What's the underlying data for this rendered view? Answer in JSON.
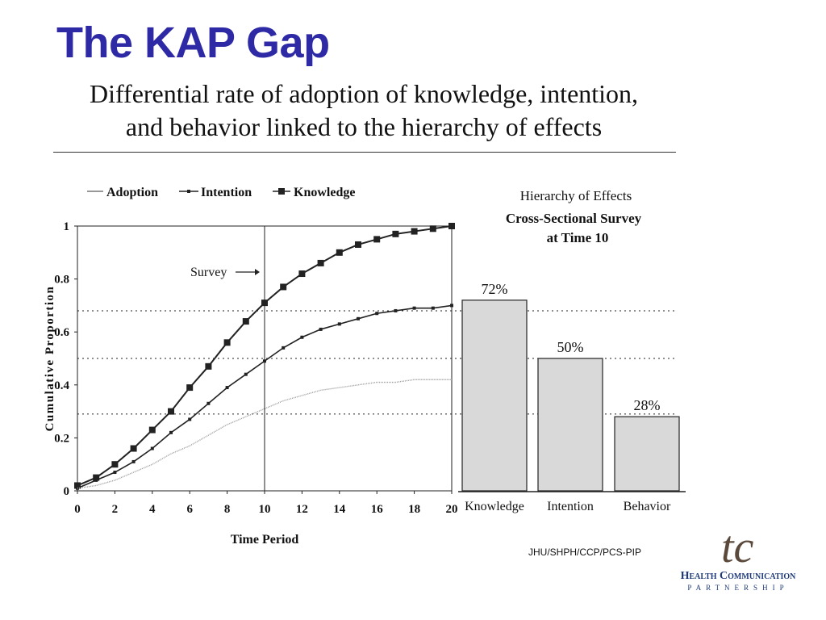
{
  "slide": {
    "title": "The KAP Gap",
    "subtitle_line1": "Differential rate of adoption of knowledge, intention,",
    "subtitle_line2": "and behavior linked to the hierarchy of effects",
    "credit": "JHU/SHPH/CCP/PCS-PIP",
    "logo_mark": "tc",
    "logo_name": "Health Communication",
    "logo_sub": "PARTNERSHIP"
  },
  "chart_data": [
    {
      "type": "line",
      "title": "",
      "xlabel": "Time Period",
      "ylabel": "Cumulative Proportion",
      "xlim": [
        0,
        20
      ],
      "ylim": [
        0,
        1
      ],
      "x_ticks": [
        "0",
        "2",
        "4",
        "6",
        "8",
        "10",
        "12",
        "14",
        "16",
        "18",
        "20"
      ],
      "y_ticks": [
        "0",
        "0.2",
        "0.4",
        "0.6",
        "0.8",
        "1"
      ],
      "legend": [
        "Adoption",
        "Intention",
        "Knowledge"
      ],
      "legend_position": "top",
      "x": [
        0,
        1,
        2,
        3,
        4,
        5,
        6,
        7,
        8,
        9,
        10,
        11,
        12,
        13,
        14,
        15,
        16,
        17,
        18,
        19,
        20
      ],
      "series": [
        {
          "name": "Knowledge",
          "marker": "large-square",
          "values": [
            0.02,
            0.05,
            0.1,
            0.16,
            0.23,
            0.3,
            0.39,
            0.47,
            0.56,
            0.64,
            0.71,
            0.77,
            0.82,
            0.86,
            0.9,
            0.93,
            0.95,
            0.97,
            0.98,
            0.99,
            1.0
          ]
        },
        {
          "name": "Intention",
          "marker": "small-square",
          "values": [
            0.01,
            0.04,
            0.07,
            0.11,
            0.16,
            0.22,
            0.27,
            0.33,
            0.39,
            0.44,
            0.49,
            0.54,
            0.58,
            0.61,
            0.63,
            0.65,
            0.67,
            0.68,
            0.69,
            0.69,
            0.7
          ]
        },
        {
          "name": "Adoption",
          "marker": "none",
          "values": [
            0.01,
            0.02,
            0.04,
            0.07,
            0.1,
            0.14,
            0.17,
            0.21,
            0.25,
            0.28,
            0.31,
            0.34,
            0.36,
            0.38,
            0.39,
            0.4,
            0.41,
            0.41,
            0.42,
            0.42,
            0.42
          ]
        }
      ],
      "reference_lines": [
        0.68,
        0.5,
        0.29
      ],
      "annotation": {
        "text": "Survey",
        "x": 10
      }
    },
    {
      "type": "bar",
      "title_lines": [
        "Hierarchy of Effects",
        "Cross-Sectional Survey",
        "at Time 10"
      ],
      "categories": [
        "Knowledge",
        "Intention",
        "Behavior"
      ],
      "values": [
        72,
        50,
        28
      ],
      "labels": [
        "72%",
        "50%",
        "28%"
      ],
      "ylim": [
        0,
        100
      ]
    }
  ]
}
